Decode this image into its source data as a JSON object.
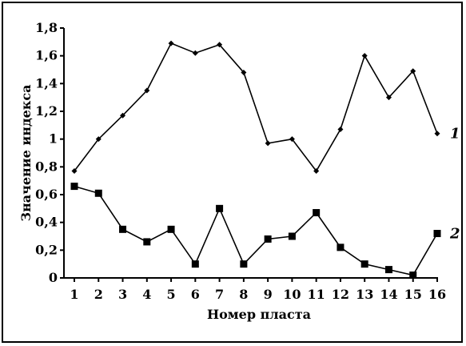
{
  "chart_data": {
    "type": "line",
    "title": "",
    "xlabel": "Номер пласта",
    "ylabel": "Значение индекса",
    "ylim": [
      0,
      1.8
    ],
    "y_ticks": [
      "0",
      "0,2",
      "0,4",
      "0,6",
      "0,8",
      "1",
      "1,2",
      "1,4",
      "1,6",
      "1,8"
    ],
    "x": [
      1,
      2,
      3,
      4,
      5,
      6,
      7,
      8,
      9,
      10,
      11,
      12,
      13,
      14,
      15,
      16
    ],
    "x_ticks": [
      "1",
      "2",
      "3",
      "4",
      "5",
      "6",
      "7",
      "8",
      "9",
      "10",
      "11",
      "12",
      "13",
      "14",
      "15",
      "16"
    ],
    "grid": false,
    "series": [
      {
        "name": "1",
        "marker": "diamond",
        "values": [
          0.77,
          1.0,
          1.17,
          1.35,
          1.69,
          1.62,
          1.68,
          1.48,
          0.97,
          1.0,
          0.77,
          1.07,
          1.6,
          1.3,
          1.49,
          1.04
        ]
      },
      {
        "name": "2",
        "marker": "square",
        "values": [
          0.66,
          0.61,
          0.35,
          0.26,
          0.35,
          0.1,
          0.5,
          0.1,
          0.28,
          0.3,
          0.47,
          0.22,
          0.1,
          0.06,
          0.02,
          0.32
        ]
      }
    ],
    "colors": {
      "line": "#000000",
      "marker": "#000000"
    }
  }
}
